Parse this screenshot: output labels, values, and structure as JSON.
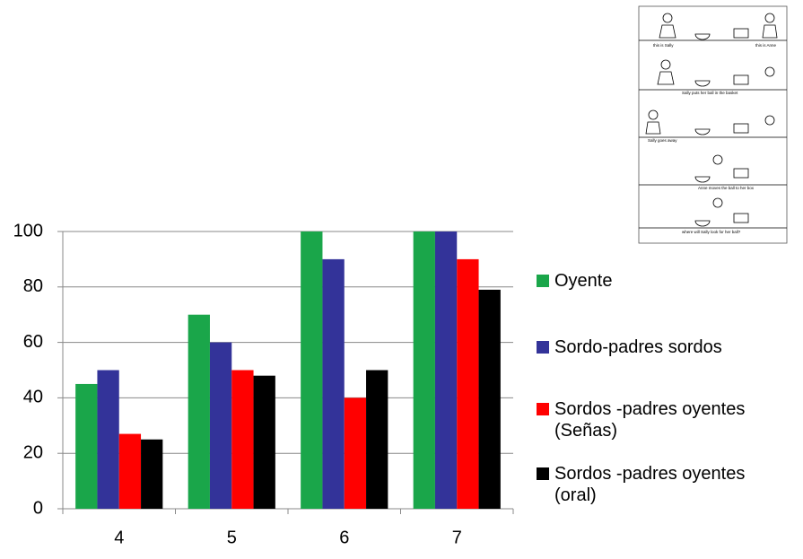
{
  "chart_data": {
    "type": "bar",
    "categories": [
      "4",
      "5",
      "6",
      "7"
    ],
    "series": [
      {
        "name": "Oyente",
        "color": "#1aa64a",
        "values": [
          45,
          70,
          100,
          100
        ]
      },
      {
        "name": "Sordo-padres sordos",
        "color": "#333399",
        "values": [
          50,
          60,
          90,
          100
        ]
      },
      {
        "name": "Sordos -padres oyentes\n(Señas)",
        "color": "#ff0000",
        "values": [
          27,
          50,
          40,
          90
        ]
      },
      {
        "name": "Sordos -padres oyentes\n(oral)",
        "color": "#000000",
        "values": [
          25,
          48,
          50,
          79
        ]
      }
    ],
    "ylim": [
      0,
      100
    ],
    "yticks": [
      0,
      20,
      40,
      60,
      80,
      100
    ],
    "grid": true
  },
  "inset": {
    "captions": [
      "this is Sally",
      "this is Anne",
      "Sally puts her ball in the basket",
      "Sally goes away",
      "Anne moves the ball to her box",
      "where will Sally look for her ball?"
    ]
  }
}
